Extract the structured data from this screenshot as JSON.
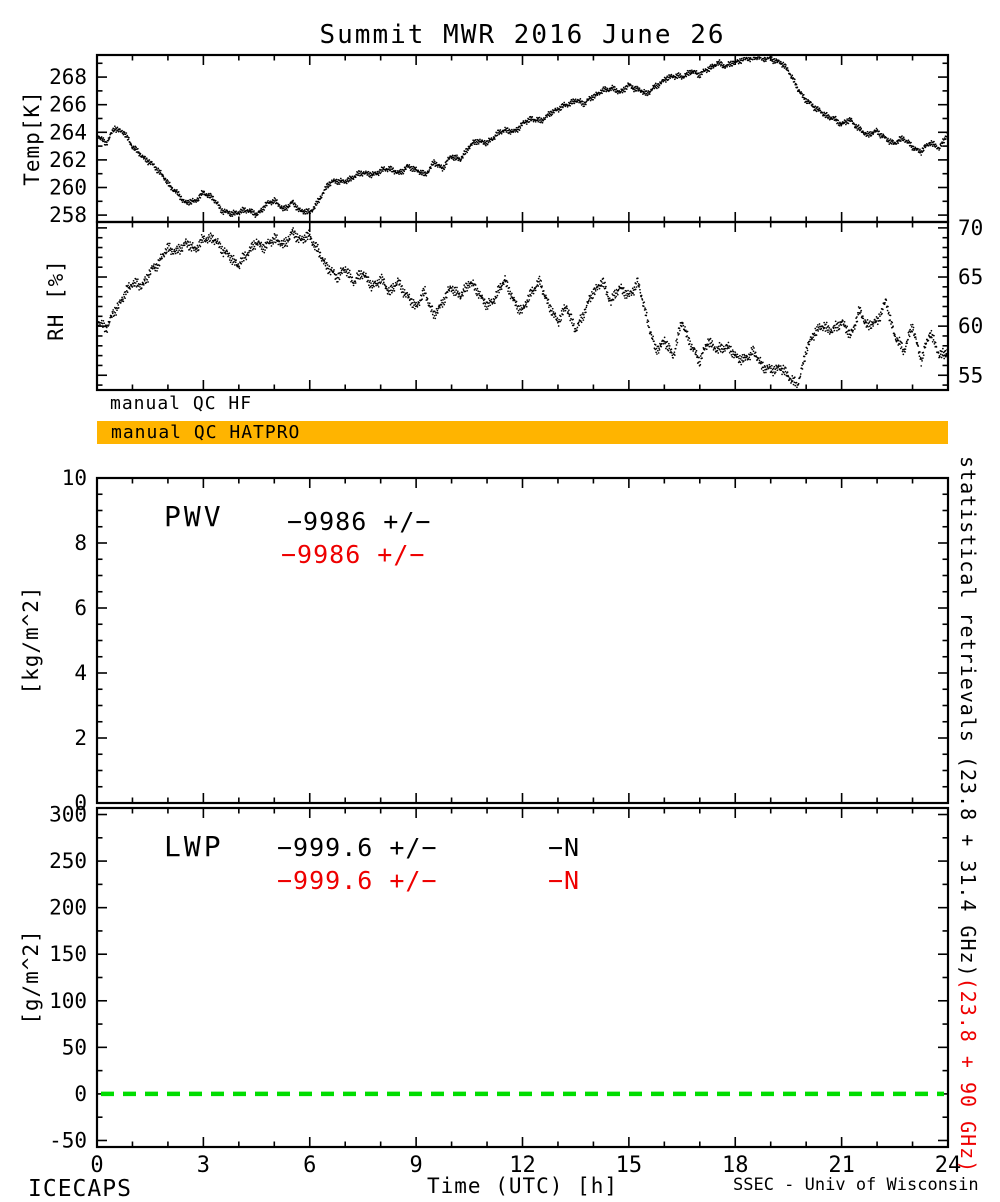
{
  "qc": {
    "hf_label": "manual QC HF",
    "hatpro_label": "manual QC HATPRO"
  },
  "annotations": {
    "pwv_label": "PWV",
    "pwv_stat_black": "−9986 +/−",
    "pwv_stat_red": "−9986 +/−",
    "lwp_label": "LWP",
    "lwp_stat_black": "−999.6 +/−",
    "lwp_n_black": "−N",
    "lwp_stat_red": "−999.6 +/−",
    "lwp_n_red": "−N"
  },
  "side_labels": {
    "black": "statistical retrievals (23.8 + 31.4 GHz)",
    "red": "(23.8 + 90 GHz)"
  },
  "footer": {
    "left": "ICECAPS",
    "right": "SSEC - Univ of Wisconsin"
  },
  "colors": {
    "qc_bar": "#ffb400",
    "red": "#ee0000",
    "green_line": "#00dd00",
    "trace": "#000000"
  },
  "chart_data": {
    "type": "line",
    "title": "Summit MWR 2016 June 26",
    "xlabel": "Time (UTC) [h]",
    "xlim": [
      0,
      24
    ],
    "xticks": [
      0,
      3,
      6,
      9,
      12,
      15,
      18,
      21,
      24
    ],
    "panels": [
      {
        "id": "temp",
        "ylabel": "Temp[K]",
        "ylim": [
          257.5,
          269.6
        ],
        "yticks": [
          258,
          260,
          262,
          264,
          266,
          268
        ],
        "yminor": 2,
        "x0": 0,
        "dx": 0.25,
        "y": [
          263.8,
          263.2,
          264.3,
          264.0,
          263.0,
          262.3,
          261.8,
          261.2,
          260.3,
          259.6,
          258.9,
          259.0,
          259.6,
          259.3,
          258.4,
          258.1,
          258.2,
          258.4,
          258.0,
          258.7,
          259.1,
          258.4,
          258.9,
          258.3,
          258.2,
          259.0,
          260.2,
          260.5,
          260.4,
          260.8,
          261.1,
          260.9,
          261.2,
          261.4,
          261.0,
          261.5,
          261.3,
          260.9,
          261.8,
          261.4,
          262.3,
          262.0,
          263.0,
          263.4,
          263.2,
          263.8,
          264.2,
          264.0,
          264.6,
          265.0,
          264.8,
          265.3,
          265.7,
          266.0,
          266.3,
          266.1,
          266.6,
          267.0,
          267.2,
          266.9,
          267.4,
          267.1,
          266.8,
          267.3,
          267.8,
          268.1,
          268.0,
          268.4,
          268.2,
          268.6,
          269.0,
          268.8,
          269.1,
          269.3,
          269.4,
          269.4,
          269.3,
          269.1,
          268.5,
          267.2,
          266.3,
          265.8,
          265.3,
          265.0,
          264.6,
          264.9,
          264.2,
          263.8,
          264.1,
          263.5,
          263.2,
          263.6,
          262.9,
          262.6,
          263.3,
          262.8,
          264.0
        ]
      },
      {
        "id": "rh",
        "ylabel": "RH [%]",
        "ylim": [
          53.5,
          70.6
        ],
        "yticks": [
          55,
          60,
          65,
          70
        ],
        "yminor": 5,
        "ylabels_side": "right",
        "x0": 0,
        "dx": 0.25,
        "y": [
          60.5,
          59.8,
          61.5,
          63.0,
          64.5,
          64.0,
          65.5,
          66.5,
          68.0,
          67.5,
          68.5,
          67.8,
          68.8,
          69.0,
          68.0,
          67.0,
          66.2,
          67.5,
          68.5,
          68.0,
          69.0,
          68.2,
          69.5,
          68.8,
          69.2,
          67.5,
          66.0,
          65.0,
          65.8,
          64.5,
          65.5,
          64.0,
          64.8,
          63.5,
          64.5,
          63.0,
          62.0,
          63.5,
          61.0,
          62.5,
          64.0,
          63.0,
          64.5,
          63.5,
          62.0,
          63.0,
          64.8,
          62.5,
          61.5,
          63.5,
          64.5,
          62.0,
          60.5,
          62.0,
          59.5,
          61.5,
          63.5,
          64.5,
          62.5,
          64.0,
          63.0,
          64.5,
          61.0,
          57.5,
          58.5,
          57.0,
          60.5,
          58.0,
          56.5,
          58.5,
          57.5,
          58.0,
          57.0,
          56.5,
          57.5,
          56.0,
          55.5,
          55.8,
          55.0,
          53.8,
          57.5,
          59.5,
          60.0,
          59.5,
          60.5,
          59.0,
          61.5,
          60.0,
          60.5,
          62.5,
          59.0,
          57.5,
          60.0,
          56.5,
          59.5,
          57.0,
          57.5
        ]
      },
      {
        "id": "pwv",
        "ylabel": "[kg/m^2]",
        "ylim": [
          0,
          10
        ],
        "yticks": [
          0,
          2,
          4,
          6,
          8,
          10
        ],
        "yminor": 4,
        "y": null
      },
      {
        "id": "lwp",
        "ylabel": "[g/m^2]",
        "ylim": [
          -57,
          307
        ],
        "yticks": [
          -50,
          0,
          50,
          100,
          150,
          200,
          250,
          300
        ],
        "yminor": 2,
        "y": null,
        "zero_line": {
          "y": 0,
          "style": "dashed",
          "color": "#00dd00"
        }
      }
    ]
  }
}
